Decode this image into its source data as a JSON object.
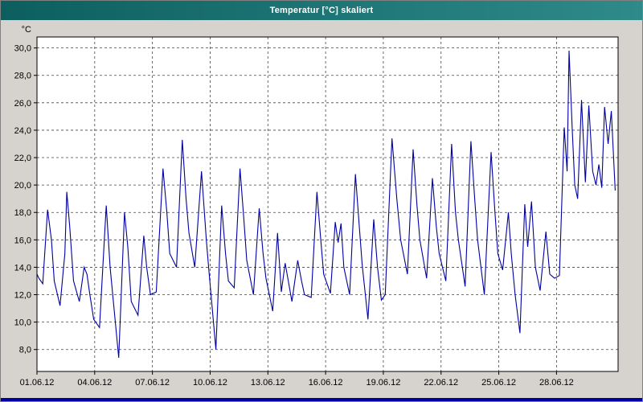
{
  "window": {
    "title": "Temperatur [°C] skaliert"
  },
  "chart_data": {
    "type": "line",
    "title": "Temperatur [°C] skaliert",
    "unit_label": "°C",
    "xlabel": "",
    "ylabel": "°C",
    "grid": true,
    "legend": "none",
    "series_name": "Temperatur",
    "series_color": "#0000a0",
    "grid_color": "#444444",
    "plot_background": "#ffffff",
    "ylim": [
      6.4,
      30.8
    ],
    "xlim": [
      0,
      30.2
    ],
    "y_ticks": [
      {
        "value": 30,
        "label": "30,0"
      },
      {
        "value": 28,
        "label": "28,0"
      },
      {
        "value": 26,
        "label": "26,0"
      },
      {
        "value": 24,
        "label": "24,0"
      },
      {
        "value": 22,
        "label": "22,0"
      },
      {
        "value": 20,
        "label": "20,0"
      },
      {
        "value": 18,
        "label": "18,0"
      },
      {
        "value": 16,
        "label": "16,0"
      },
      {
        "value": 14,
        "label": "14,0"
      },
      {
        "value": 12,
        "label": "12,0"
      },
      {
        "value": 10,
        "label": "10,0"
      },
      {
        "value": 8,
        "label": "8,0"
      }
    ],
    "x_ticks": [
      {
        "day": 0,
        "label": "01.06.12"
      },
      {
        "day": 3,
        "label": "04.06.12"
      },
      {
        "day": 6,
        "label": "07.06.12"
      },
      {
        "day": 9,
        "label": "10.06.12"
      },
      {
        "day": 12,
        "label": "13.06.12"
      },
      {
        "day": 15,
        "label": "16.06.12"
      },
      {
        "day": 18,
        "label": "19.06.12"
      },
      {
        "day": 21,
        "label": "22.06.12"
      },
      {
        "day": 24,
        "label": "25.06.12"
      },
      {
        "day": 27,
        "label": "28.06.12"
      }
    ],
    "points": [
      [
        0.0,
        13.5
      ],
      [
        0.1,
        13.2
      ],
      [
        0.3,
        12.8
      ],
      [
        0.55,
        18.2
      ],
      [
        0.75,
        16.0
      ],
      [
        0.9,
        13.0
      ],
      [
        1.2,
        11.2
      ],
      [
        1.45,
        15.0
      ],
      [
        1.55,
        19.5
      ],
      [
        1.7,
        17.0
      ],
      [
        1.9,
        13.0
      ],
      [
        2.2,
        11.5
      ],
      [
        2.45,
        14.0
      ],
      [
        2.6,
        13.5
      ],
      [
        2.75,
        12.0
      ],
      [
        2.95,
        10.2
      ],
      [
        3.25,
        9.6
      ],
      [
        3.5,
        16.0
      ],
      [
        3.6,
        18.5
      ],
      [
        3.8,
        14.0
      ],
      [
        4.25,
        7.4
      ],
      [
        4.55,
        18.0
      ],
      [
        4.72,
        15.5
      ],
      [
        4.9,
        11.5
      ],
      [
        5.25,
        10.5
      ],
      [
        5.55,
        16.3
      ],
      [
        5.7,
        14.0
      ],
      [
        5.9,
        12.0
      ],
      [
        6.2,
        12.2
      ],
      [
        6.55,
        21.2
      ],
      [
        6.75,
        18.0
      ],
      [
        6.9,
        15.0
      ],
      [
        7.25,
        14.0
      ],
      [
        7.55,
        23.3
      ],
      [
        7.75,
        19.0
      ],
      [
        7.9,
        16.5
      ],
      [
        8.2,
        14.0
      ],
      [
        8.55,
        21.0
      ],
      [
        8.8,
        16.0
      ],
      [
        8.95,
        13.5
      ],
      [
        9.3,
        8.0
      ],
      [
        9.6,
        18.5
      ],
      [
        9.8,
        15.0
      ],
      [
        9.95,
        13.0
      ],
      [
        10.25,
        12.5
      ],
      [
        10.55,
        21.2
      ],
      [
        10.75,
        17.5
      ],
      [
        10.9,
        14.5
      ],
      [
        11.25,
        12.0
      ],
      [
        11.55,
        18.3
      ],
      [
        11.75,
        15.0
      ],
      [
        11.9,
        13.2
      ],
      [
        12.25,
        10.8
      ],
      [
        12.5,
        16.5
      ],
      [
        12.7,
        12.2
      ],
      [
        12.9,
        14.3
      ],
      [
        13.25,
        11.5
      ],
      [
        13.55,
        14.5
      ],
      [
        13.75,
        13.0
      ],
      [
        13.9,
        12.0
      ],
      [
        14.25,
        11.8
      ],
      [
        14.55,
        19.5
      ],
      [
        14.75,
        16.0
      ],
      [
        14.9,
        13.5
      ],
      [
        15.25,
        12.1
      ],
      [
        15.5,
        17.3
      ],
      [
        15.65,
        15.8
      ],
      [
        15.8,
        17.2
      ],
      [
        15.95,
        14.0
      ],
      [
        16.25,
        12.0
      ],
      [
        16.55,
        20.8
      ],
      [
        16.75,
        17.0
      ],
      [
        16.9,
        14.2
      ],
      [
        17.2,
        10.2
      ],
      [
        17.5,
        17.5
      ],
      [
        17.7,
        14.0
      ],
      [
        17.9,
        11.6
      ],
      [
        18.1,
        12.0
      ],
      [
        18.45,
        23.4
      ],
      [
        18.7,
        19.0
      ],
      [
        18.9,
        16.0
      ],
      [
        19.25,
        13.5
      ],
      [
        19.55,
        22.6
      ],
      [
        19.75,
        18.5
      ],
      [
        19.9,
        16.0
      ],
      [
        20.25,
        13.2
      ],
      [
        20.55,
        20.5
      ],
      [
        20.75,
        17.0
      ],
      [
        20.9,
        15.0
      ],
      [
        21.25,
        13.0
      ],
      [
        21.55,
        23.0
      ],
      [
        21.75,
        18.0
      ],
      [
        21.9,
        16.0
      ],
      [
        22.25,
        12.6
      ],
      [
        22.55,
        23.2
      ],
      [
        22.75,
        19.0
      ],
      [
        22.9,
        16.0
      ],
      [
        23.25,
        12.0
      ],
      [
        23.6,
        22.4
      ],
      [
        23.8,
        18.0
      ],
      [
        23.95,
        15.0
      ],
      [
        24.2,
        13.8
      ],
      [
        24.5,
        18.0
      ],
      [
        24.65,
        15.0
      ],
      [
        24.85,
        12.0
      ],
      [
        25.1,
        9.2
      ],
      [
        25.35,
        18.6
      ],
      [
        25.5,
        15.5
      ],
      [
        25.7,
        18.8
      ],
      [
        25.9,
        14.0
      ],
      [
        26.15,
        12.3
      ],
      [
        26.45,
        16.6
      ],
      [
        26.65,
        13.5
      ],
      [
        26.9,
        13.2
      ],
      [
        27.15,
        13.4
      ],
      [
        27.4,
        24.2
      ],
      [
        27.55,
        21.0
      ],
      [
        27.65,
        29.8
      ],
      [
        27.82,
        24.0
      ],
      [
        27.95,
        20.0
      ],
      [
        28.1,
        19.0
      ],
      [
        28.3,
        26.2
      ],
      [
        28.5,
        20.2
      ],
      [
        28.68,
        25.8
      ],
      [
        28.88,
        21.0
      ],
      [
        29.05,
        20.0
      ],
      [
        29.2,
        21.5
      ],
      [
        29.35,
        19.8
      ],
      [
        29.5,
        25.7
      ],
      [
        29.68,
        23.0
      ],
      [
        29.85,
        25.4
      ],
      [
        30.05,
        19.6
      ]
    ]
  }
}
